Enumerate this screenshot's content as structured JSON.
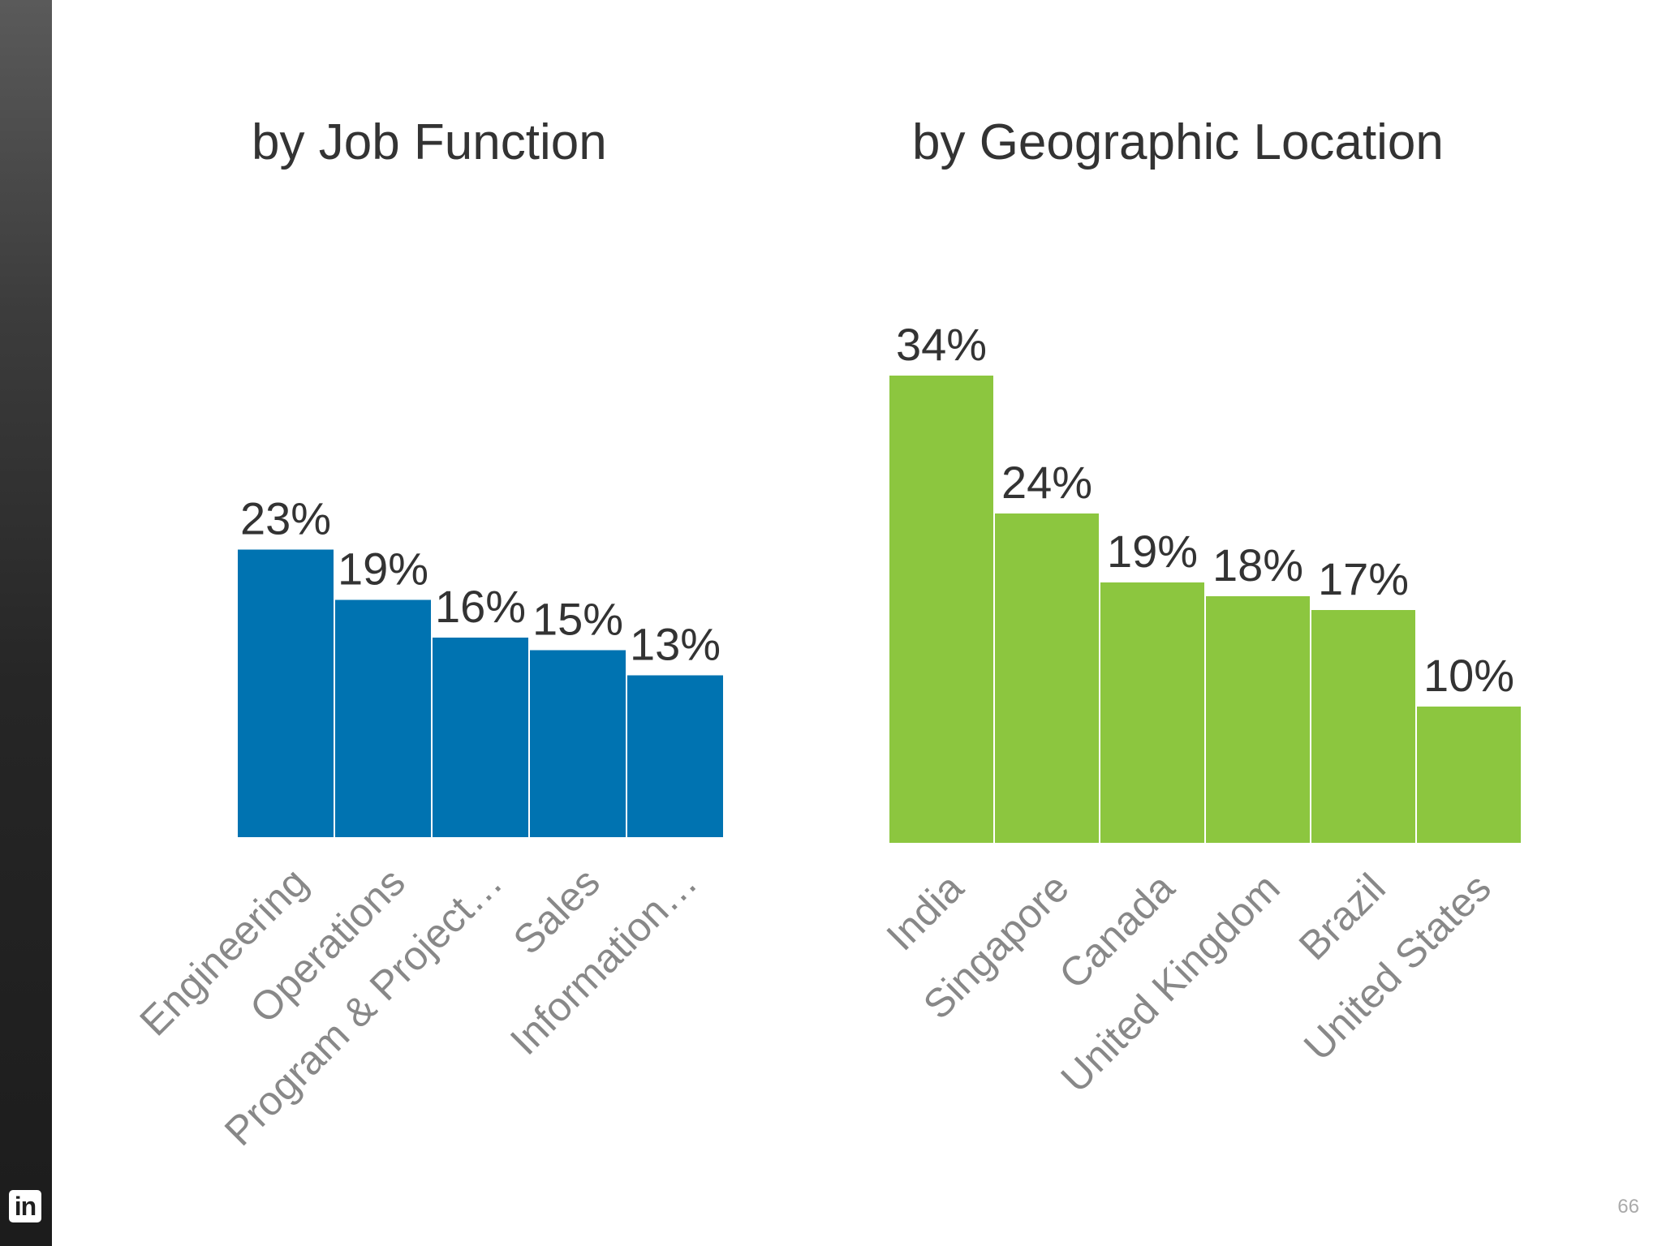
{
  "brand": {
    "logo_text": "in"
  },
  "page_number": "66",
  "colors": {
    "job_bar": "#0073B1",
    "geo_bar": "#8CC63F",
    "sidebar": "#2a2a2a"
  },
  "chart_data": [
    {
      "type": "bar",
      "title": "by Job Function",
      "categories": [
        "Engineering",
        "Operations",
        "Program & Project…",
        "Sales",
        "Information…"
      ],
      "values": [
        23,
        19,
        16,
        15,
        13
      ],
      "value_labels": [
        "23%",
        "19%",
        "16%",
        "15%",
        "13%"
      ],
      "color": "#0073B1",
      "grid": false,
      "legend": "none"
    },
    {
      "type": "bar",
      "title": "by Geographic Location",
      "categories": [
        "India",
        "Singapore",
        "Canada",
        "United Kingdom",
        "Brazil",
        "United States"
      ],
      "values": [
        34,
        24,
        19,
        18,
        17,
        10
      ],
      "value_labels": [
        "34%",
        "24%",
        "19%",
        "18%",
        "17%",
        "10%"
      ],
      "color": "#8CC63F",
      "grid": false,
      "legend": "none"
    }
  ]
}
